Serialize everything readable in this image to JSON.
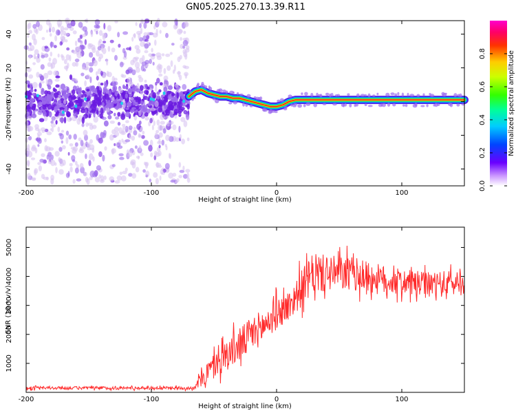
{
  "title": "GN05.2025.270.13.39.R11",
  "colors": {
    "snr_line": "#ff2a2a",
    "scatter_light": "#d9c4f2",
    "scatter_mid": "#9b6bec",
    "scatter_dark": "#6a1ae0",
    "track_green": "#22ee44",
    "track_red": "#ff2222"
  },
  "chart_data": [
    {
      "type": "heatmap",
      "name": "spectrogram",
      "xlabel": "Height of straight line (km)",
      "ylabel": "Frequency (Hz)",
      "xlim": [
        -200,
        150
      ],
      "ylim": [
        -50,
        48
      ],
      "x_ticks": [
        -200,
        -100,
        0,
        100
      ],
      "y_ticks": [
        -40,
        -20,
        0,
        20,
        40
      ],
      "colorbar": {
        "label": "Normalized spectral amplitude",
        "range": [
          0.0,
          1.0
        ],
        "ticks": [
          "0.0",
          "0.2",
          "0.4",
          "0.6",
          "0.8"
        ]
      },
      "noise_region_km": [
        -200,
        -70
      ],
      "track": {
        "x": [
          -70,
          -65,
          -60,
          -55,
          -50,
          -45,
          -40,
          -35,
          -30,
          -25,
          -20,
          -15,
          -10,
          -5,
          0,
          5,
          10,
          15,
          20,
          40,
          60,
          80,
          100,
          120,
          150
        ],
        "freq": [
          3,
          6,
          7,
          5,
          4,
          3,
          3,
          2,
          2,
          1,
          0,
          -1,
          -2,
          -3,
          -3,
          -2,
          0,
          1,
          1,
          1,
          1,
          1,
          1,
          1,
          1
        ]
      }
    },
    {
      "type": "line",
      "name": "snr",
      "xlabel": "Height of straight line (km)",
      "ylabel": "SNR (10 * v/v)",
      "xlim": [
        -200,
        150
      ],
      "ylim": [
        0,
        5700
      ],
      "x_ticks": [
        -200,
        -100,
        0,
        100
      ],
      "y_ticks": [
        1000,
        2000,
        3000,
        4000,
        5000
      ],
      "envelope": {
        "x": [
          -200,
          -100,
          -65,
          -60,
          -50,
          -40,
          -30,
          -20,
          -10,
          0,
          10,
          20,
          30,
          40,
          60,
          80,
          100,
          120,
          150
        ],
        "mean": [
          150,
          150,
          150,
          500,
          900,
          1300,
          1600,
          2000,
          2300,
          2700,
          3000,
          3600,
          4100,
          4100,
          4100,
          3900,
          3800,
          3700,
          3800
        ],
        "spread": [
          60,
          60,
          60,
          400,
          500,
          600,
          650,
          700,
          650,
          600,
          600,
          700,
          800,
          700,
          650,
          600,
          500,
          500,
          500
        ]
      }
    }
  ]
}
